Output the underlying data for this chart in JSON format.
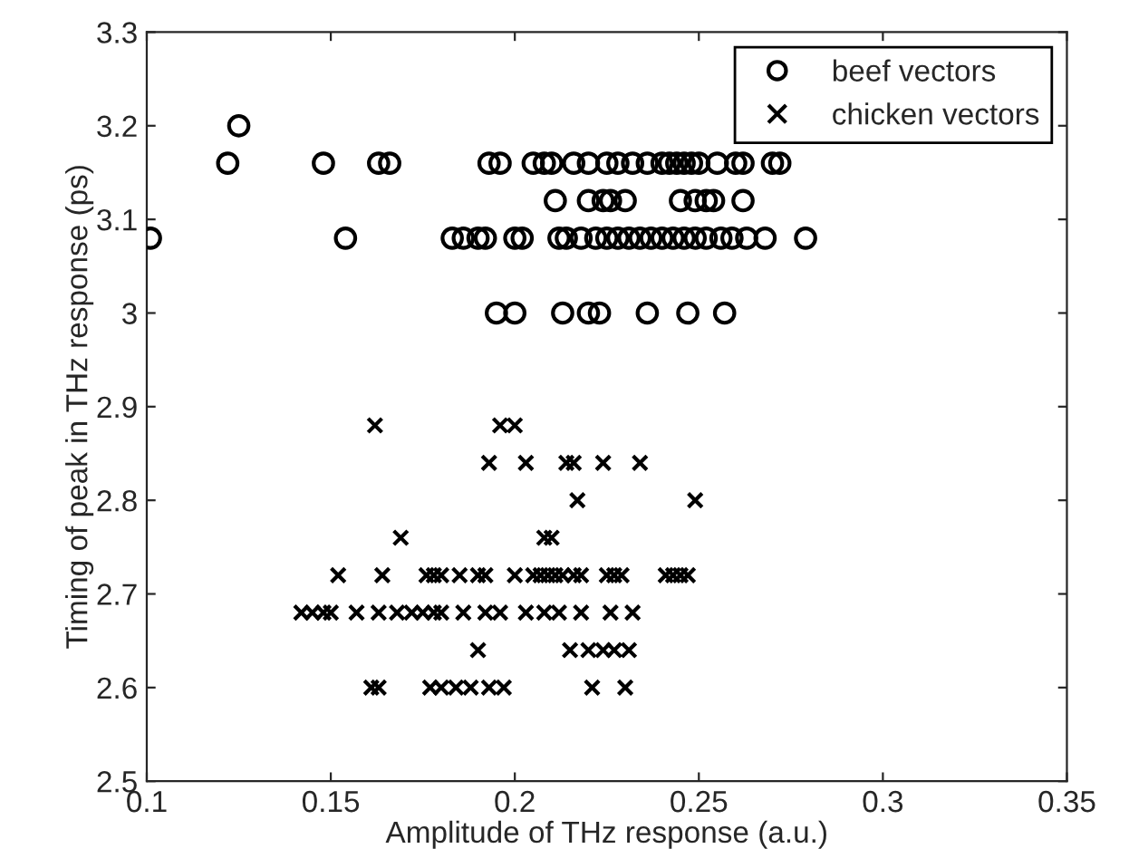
{
  "chart_data": {
    "type": "scatter",
    "xlabel": "Amplitude of THz response (a.u.)",
    "ylabel": "Timing of peak in THz response (ps)",
    "xlim": [
      0.1,
      0.35
    ],
    "xticks": [
      0.1,
      0.15,
      0.2,
      0.25,
      0.3,
      0.35
    ],
    "ylim": [
      2.5,
      3.3
    ],
    "yticks": [
      2.5,
      2.6,
      2.7,
      2.8,
      2.9,
      3,
      3.1,
      3.2,
      3.3
    ],
    "grid": false,
    "legend": "top right",
    "series": [
      {
        "name": "beef vectors",
        "color": "#000000",
        "marker": "circle",
        "x": [
          0.125,
          0.122,
          0.148,
          0.163,
          0.166,
          0.193,
          0.196,
          0.205,
          0.208,
          0.21,
          0.216,
          0.22,
          0.225,
          0.228,
          0.232,
          0.236,
          0.24,
          0.242,
          0.244,
          0.246,
          0.248,
          0.25,
          0.255,
          0.26,
          0.262,
          0.27,
          0.272,
          0.211,
          0.22,
          0.224,
          0.226,
          0.23,
          0.245,
          0.249,
          0.252,
          0.254,
          0.262,
          0.101,
          0.154,
          0.183,
          0.186,
          0.19,
          0.192,
          0.2,
          0.202,
          0.212,
          0.214,
          0.218,
          0.222,
          0.225,
          0.228,
          0.231,
          0.234,
          0.237,
          0.24,
          0.243,
          0.246,
          0.249,
          0.252,
          0.256,
          0.259,
          0.263,
          0.268,
          0.279,
          0.195,
          0.2,
          0.213,
          0.22,
          0.223,
          0.236,
          0.247,
          0.257
        ],
        "values": [
          3.2,
          3.16,
          3.16,
          3.16,
          3.16,
          3.16,
          3.16,
          3.16,
          3.16,
          3.16,
          3.16,
          3.16,
          3.16,
          3.16,
          3.16,
          3.16,
          3.16,
          3.16,
          3.16,
          3.16,
          3.16,
          3.16,
          3.16,
          3.16,
          3.16,
          3.16,
          3.16,
          3.12,
          3.12,
          3.12,
          3.12,
          3.12,
          3.12,
          3.12,
          3.12,
          3.12,
          3.12,
          3.08,
          3.08,
          3.08,
          3.08,
          3.08,
          3.08,
          3.08,
          3.08,
          3.08,
          3.08,
          3.08,
          3.08,
          3.08,
          3.08,
          3.08,
          3.08,
          3.08,
          3.08,
          3.08,
          3.08,
          3.08,
          3.08,
          3.08,
          3.08,
          3.08,
          3.08,
          3.08,
          3.0,
          3.0,
          3.0,
          3.0,
          3.0,
          3.0,
          3.0,
          3.0
        ]
      },
      {
        "name": "chicken vectors",
        "color": "#000000",
        "marker": "cross",
        "x": [
          0.162,
          0.196,
          0.2,
          0.193,
          0.203,
          0.214,
          0.216,
          0.224,
          0.234,
          0.217,
          0.249,
          0.169,
          0.208,
          0.21,
          0.152,
          0.164,
          0.176,
          0.178,
          0.18,
          0.185,
          0.19,
          0.192,
          0.2,
          0.205,
          0.207,
          0.209,
          0.211,
          0.213,
          0.216,
          0.218,
          0.225,
          0.227,
          0.229,
          0.241,
          0.243,
          0.245,
          0.247,
          0.142,
          0.145,
          0.148,
          0.15,
          0.157,
          0.163,
          0.168,
          0.172,
          0.175,
          0.178,
          0.18,
          0.186,
          0.192,
          0.196,
          0.203,
          0.208,
          0.212,
          0.218,
          0.226,
          0.232,
          0.19,
          0.215,
          0.22,
          0.224,
          0.227,
          0.231,
          0.161,
          0.163,
          0.177,
          0.18,
          0.184,
          0.188,
          0.193,
          0.197,
          0.221,
          0.23
        ],
        "values": [
          2.88,
          2.88,
          2.88,
          2.84,
          2.84,
          2.84,
          2.84,
          2.84,
          2.84,
          2.8,
          2.8,
          2.76,
          2.76,
          2.76,
          2.72,
          2.72,
          2.72,
          2.72,
          2.72,
          2.72,
          2.72,
          2.72,
          2.72,
          2.72,
          2.72,
          2.72,
          2.72,
          2.72,
          2.72,
          2.72,
          2.72,
          2.72,
          2.72,
          2.72,
          2.72,
          2.72,
          2.72,
          2.68,
          2.68,
          2.68,
          2.68,
          2.68,
          2.68,
          2.68,
          2.68,
          2.68,
          2.68,
          2.68,
          2.68,
          2.68,
          2.68,
          2.68,
          2.68,
          2.68,
          2.68,
          2.68,
          2.68,
          2.64,
          2.64,
          2.64,
          2.64,
          2.64,
          2.64,
          2.6,
          2.6,
          2.6,
          2.6,
          2.6,
          2.6,
          2.6,
          2.6,
          2.6,
          2.6
        ]
      }
    ]
  }
}
